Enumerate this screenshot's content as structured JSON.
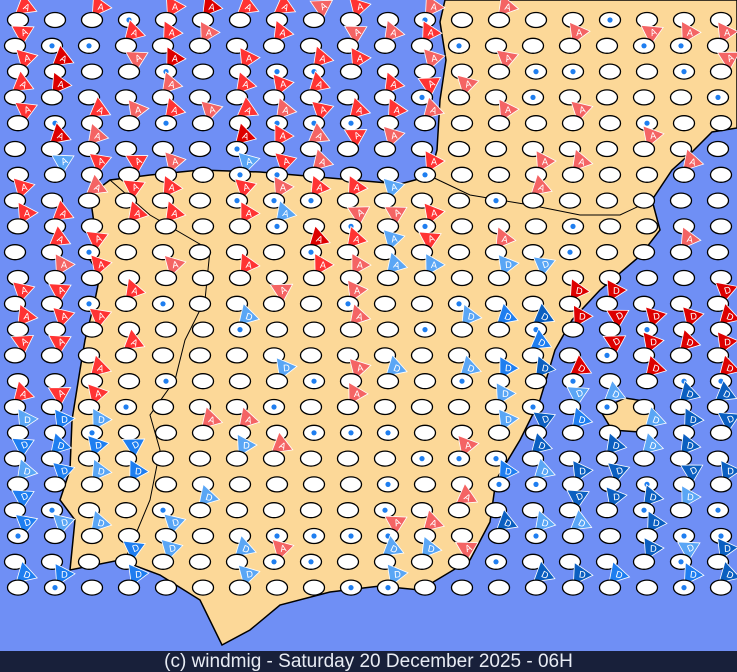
{
  "footer": "(c) windmig - Saturday 20 December 2025 - 06H",
  "colors": {
    "sea": "#6f8ff5",
    "land": "#fcd898",
    "strong_onshore": "#dd0000",
    "onshore": "#ff3333",
    "light_onshore": "#f46464",
    "light_offshore": "#5aa6f5",
    "offshore": "#1e7ef0",
    "strong_offshore": "#0b5fc0",
    "station": "#ffffff"
  },
  "legend_labels": {
    "onshore": "A",
    "offshore": "D"
  },
  "icons": [
    "wind-flag-icon",
    "station-ellipse-icon",
    "drop-icon"
  ]
}
